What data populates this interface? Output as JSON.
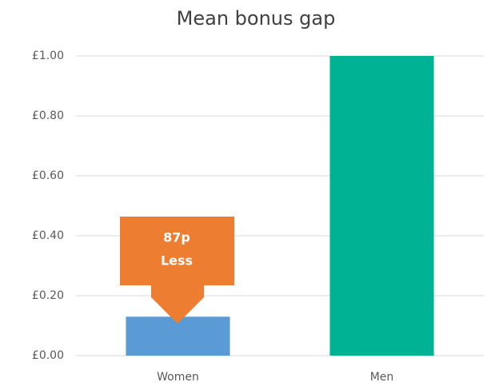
{
  "chart_data": {
    "type": "bar",
    "title": "Mean bonus gap",
    "categories": [
      "Women",
      "Men"
    ],
    "values": [
      0.13,
      1.0
    ],
    "colors": [
      "#5b9bd5",
      "#00b294"
    ],
    "ylim": [
      0,
      1
    ],
    "yticks": [
      {
        "value": 0,
        "label": "£0.00"
      },
      {
        "value": 0.2,
        "label": "£0.20"
      },
      {
        "value": 0.4,
        "label": "£0.40"
      },
      {
        "value": 0.6,
        "label": "£0.60"
      },
      {
        "value": 0.8,
        "label": "£0.80"
      },
      {
        "value": 1,
        "label": "£1.00"
      }
    ],
    "grid": true,
    "annotation": [
      "87p",
      "Less"
    ],
    "annotation_color": "#ed7d31"
  }
}
